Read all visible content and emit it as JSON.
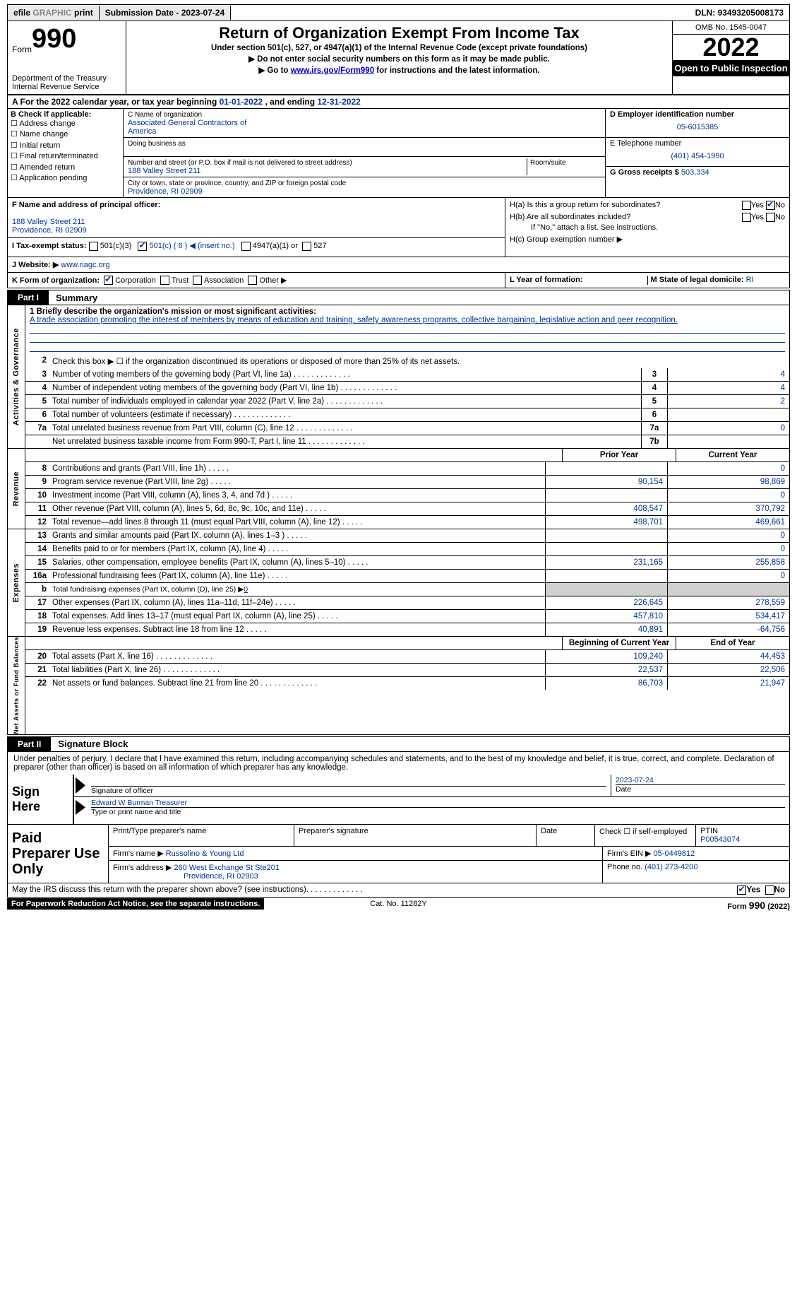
{
  "toolbar": {
    "efile_prefix": "efile",
    "efile_graphic": "GRAPHIC",
    "print": "print",
    "submission_label": "Submission Date - ",
    "submission_date": "2023-07-24",
    "dln_label": "DLN: ",
    "dln": "93493205008173"
  },
  "header": {
    "form_word": "Form",
    "form_num": "990",
    "dept": "Department of the Treasury",
    "irs": "Internal Revenue Service",
    "title": "Return of Organization Exempt From Income Tax",
    "sub1": "Under section 501(c), 527, or 4947(a)(1) of the Internal Revenue Code (except private foundations)",
    "sub2_pre": "▶ Do not enter social security numbers on this form as it may be made public.",
    "sub3_pre": "▶ Go to ",
    "sub3_link": "www.irs.gov/Form990",
    "sub3_post": " for instructions and the latest information.",
    "omb": "OMB No. 1545-0047",
    "year": "2022",
    "open": "Open to Public Inspection"
  },
  "rowA": {
    "prefix": "A For the 2022 calendar year, or tax year beginning ",
    "begin": "01-01-2022",
    "mid": " , and ending ",
    "end": "12-31-2022"
  },
  "B": {
    "hdr": "B Check if applicable:",
    "items": [
      "Address change",
      "Name change",
      "Initial return",
      "Final return/terminated",
      "Amended return",
      "Application pending"
    ]
  },
  "C": {
    "name_lbl": "C Name of organization",
    "name1": "Associated General Contractors of",
    "name2": "America",
    "dba_lbl": "Doing business as",
    "street_lbl": "Number and street (or P.O. box if mail is not delivered to street address)",
    "room_lbl": "Room/suite",
    "street": "188 Valley Street 211",
    "city_lbl": "City or town, state or province, country, and ZIP or foreign postal code",
    "city": "Providence, RI  02909"
  },
  "D": {
    "lbl": "D Employer identification number",
    "val": "05-6015385"
  },
  "E": {
    "lbl": "E Telephone number",
    "val": "(401) 454-1990"
  },
  "G": {
    "lbl": "G Gross receipts $ ",
    "val": "503,334"
  },
  "F": {
    "lbl": "F Name and address of principal officer:",
    "line1": "188 Valley Street 211",
    "line2": "Providence, RI  02909"
  },
  "H": {
    "a": "H(a)  Is this a group return for subordinates?",
    "b": "H(b)  Are all subordinates included?",
    "note": "If \"No,\" attach a list. See instructions.",
    "c": "H(c)  Group exemption number ▶"
  },
  "I": {
    "lbl": "I   Tax-exempt status:",
    "opts": [
      "501(c)(3)",
      "501(c) ( 6 ) ◀ (insert no.)",
      "4947(a)(1) or",
      "527"
    ]
  },
  "J": {
    "lbl": "J   Website: ▶",
    "val": "  www.riagc.org"
  },
  "K": {
    "lbl": "K Form of organization:",
    "opts": [
      "Corporation",
      "Trust",
      "Association",
      "Other ▶"
    ]
  },
  "L": {
    "lbl": "L Year of formation:"
  },
  "M": {
    "lbl": "M State of legal domicile: ",
    "val": "RI"
  },
  "part1": {
    "lbl": "Part I",
    "title": "Summary"
  },
  "summary": {
    "brief_lbl": "1   Briefly describe the organization's mission or most significant activities:",
    "brief_txt": "A trade association promoting the interest of members by means of education and training, safety awareness programs, collective bargaining, legislative action and peer recognition.",
    "line2": "Check this box ▶ ☐ if the organization discontinued its operations or disposed of more than 25% of its net assets.",
    "rows_gov": [
      {
        "n": "3",
        "d": "Number of voting members of the governing body (Part VI, line 1a)",
        "box": "3",
        "v": "4"
      },
      {
        "n": "4",
        "d": "Number of independent voting members of the governing body (Part VI, line 1b)",
        "box": "4",
        "v": "4"
      },
      {
        "n": "5",
        "d": "Total number of individuals employed in calendar year 2022 (Part V, line 2a)",
        "box": "5",
        "v": "2"
      },
      {
        "n": "6",
        "d": "Total number of volunteers (estimate if necessary)",
        "box": "6",
        "v": ""
      },
      {
        "n": "7a",
        "d": "Total unrelated business revenue from Part VIII, column (C), line 12",
        "box": "7a",
        "v": "0"
      },
      {
        "n": "",
        "d": "Net unrelated business taxable income from Form 990-T, Part I, line 11",
        "box": "7b",
        "v": ""
      }
    ],
    "py": "Prior Year",
    "cy": "Current Year",
    "rev": [
      {
        "n": "8",
        "d": "Contributions and grants (Part VIII, line 1h)",
        "p": "",
        "c": "0"
      },
      {
        "n": "9",
        "d": "Program service revenue (Part VIII, line 2g)",
        "p": "90,154",
        "c": "98,869"
      },
      {
        "n": "10",
        "d": "Investment income (Part VIII, column (A), lines 3, 4, and 7d )",
        "p": "",
        "c": "0"
      },
      {
        "n": "11",
        "d": "Other revenue (Part VIII, column (A), lines 5, 6d, 8c, 9c, 10c, and 11e)",
        "p": "408,547",
        "c": "370,792"
      },
      {
        "n": "12",
        "d": "Total revenue—add lines 8 through 11 (must equal Part VIII, column (A), line 12)",
        "p": "498,701",
        "c": "469,661"
      }
    ],
    "exp": [
      {
        "n": "13",
        "d": "Grants and similar amounts paid (Part IX, column (A), lines 1–3 )",
        "p": "",
        "c": "0"
      },
      {
        "n": "14",
        "d": "Benefits paid to or for members (Part IX, column (A), line 4)",
        "p": "",
        "c": "0"
      },
      {
        "n": "15",
        "d": "Salaries, other compensation, employee benefits (Part IX, column (A), lines 5–10)",
        "p": "231,165",
        "c": "255,858"
      },
      {
        "n": "16a",
        "d": "Professional fundraising fees (Part IX, column (A), line 11e)",
        "p": "",
        "c": "0"
      },
      {
        "n": "b",
        "d": "Total fundraising expenses (Part IX, column (D), line 25) ▶",
        "p": "GRAY",
        "c": "GRAY",
        "sub": "0"
      },
      {
        "n": "17",
        "d": "Other expenses (Part IX, column (A), lines 11a–11d, 11f–24e)",
        "p": "226,645",
        "c": "278,559"
      },
      {
        "n": "18",
        "d": "Total expenses. Add lines 13–17 (must equal Part IX, column (A), line 25)",
        "p": "457,810",
        "c": "534,417"
      },
      {
        "n": "19",
        "d": "Revenue less expenses. Subtract line 18 from line 12",
        "p": "40,891",
        "c": "-64,756"
      }
    ],
    "boy": "Beginning of Current Year",
    "eoy": "End of Year",
    "net": [
      {
        "n": "20",
        "d": "Total assets (Part X, line 16)",
        "p": "109,240",
        "c": "44,453"
      },
      {
        "n": "21",
        "d": "Total liabilities (Part X, line 26)",
        "p": "22,537",
        "c": "22,506"
      },
      {
        "n": "22",
        "d": "Net assets or fund balances. Subtract line 21 from line 20",
        "p": "86,703",
        "c": "21,947"
      }
    ],
    "vlabels": {
      "gov": "Activities & Governance",
      "rev": "Revenue",
      "exp": "Expenses",
      "net": "Net Assets or Fund Balances"
    }
  },
  "part2": {
    "lbl": "Part II",
    "title": "Signature Block"
  },
  "sig": {
    "decl": "Under penalties of perjury, I declare that I have examined this return, including accompanying schedules and statements, and to the best of my knowledge and belief, it is true, correct, and complete. Declaration of preparer (other than officer) is based on all information of which preparer has any knowledge.",
    "sign_here": "Sign Here",
    "sig_officer": "Signature of officer",
    "date": "2023-07-24",
    "date_lbl": "Date",
    "name": "Edward W Burman  Treasurer",
    "name_lbl": "Type or print name and title"
  },
  "prep": {
    "lbl": "Paid Preparer Use Only",
    "h1": "Print/Type preparer's name",
    "h2": "Preparer's signature",
    "h3": "Date",
    "h4": "Check ☐ if self-employed",
    "h5_lbl": "PTIN",
    "h5": "P00543074",
    "firm_lbl": "Firm's name    ▶ ",
    "firm": "Russolino & Young Ltd",
    "ein_lbl": "Firm's EIN ▶ ",
    "ein": "05-0449812",
    "addr_lbl": "Firm's address ▶ ",
    "addr1": "260 West Exchange St Ste201",
    "addr2": "Providence, RI  02903",
    "phone_lbl": "Phone no. ",
    "phone": "(401) 273-4200"
  },
  "foot": {
    "q": "May the IRS discuss this return with the preparer shown above? (see instructions)",
    "yes": "Yes",
    "no": "No",
    "pra": "For Paperwork Reduction Act Notice, see the separate instructions.",
    "cat": "Cat. No. 11282Y",
    "form": "Form 990 (2022)"
  }
}
